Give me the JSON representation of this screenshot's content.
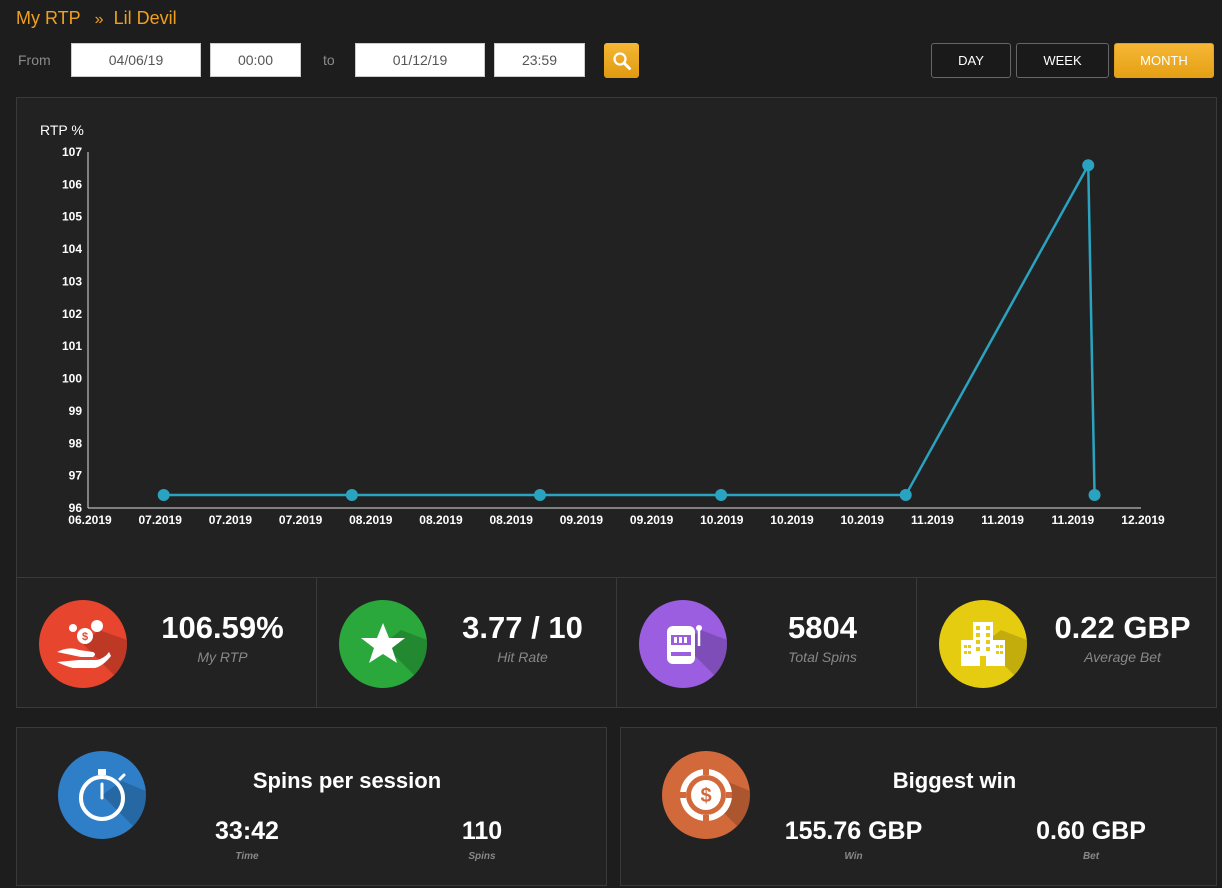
{
  "breadcrumb": {
    "parent": "My RTP",
    "separator": "»",
    "current": "Lil Devil"
  },
  "filter": {
    "from_label": "From",
    "from_date": "04/06/19",
    "from_time": "00:00",
    "to_label": "to",
    "to_date": "01/12/19",
    "to_time": "23:59"
  },
  "periods": {
    "day": "DAY",
    "week": "WEEK",
    "month": "MONTH",
    "active": "month"
  },
  "colors": {
    "accent": "#f0a01e",
    "line": "#2aa3c0"
  },
  "chart_data": {
    "type": "line",
    "ylabel": "RTP %",
    "xlabel": "",
    "ylim": [
      96,
      107
    ],
    "yticks": [
      96,
      97,
      98,
      99,
      100,
      101,
      102,
      103,
      104,
      105,
      106,
      107
    ],
    "xticks": [
      "06.2019",
      "07.2019",
      "07.2019",
      "07.2019",
      "08.2019",
      "08.2019",
      "08.2019",
      "09.2019",
      "09.2019",
      "10.2019",
      "10.2019",
      "10.2019",
      "11.2019",
      "11.2019",
      "11.2019",
      "12.2019"
    ],
    "series": [
      {
        "x": [
          "07.2019",
          "08.2019",
          "08.2019",
          "10.2019",
          "11.2019",
          "11.2019",
          "11.2019"
        ],
        "values": [
          96.4,
          96.4,
          96.4,
          96.4,
          96.4,
          106.59,
          96.4
        ]
      }
    ]
  },
  "stats": [
    {
      "icon": "money-hand-icon",
      "value": "106.59%",
      "caption": "My RTP",
      "color": "#e8452f"
    },
    {
      "icon": "star-icon",
      "value": "3.77 / 10",
      "caption": "Hit Rate",
      "color": "#2aa83c"
    },
    {
      "icon": "slot-machine-icon",
      "value": "5804",
      "caption": "Total Spins",
      "color": "#9b5ee0"
    },
    {
      "icon": "building-icon",
      "value": "0.22 GBP",
      "caption": "Average Bet",
      "color": "#e6cc10"
    }
  ],
  "session": {
    "title": "Spins per session",
    "time_value": "33:42",
    "time_label": "Time",
    "spins_value": "110",
    "spins_label": "Spins"
  },
  "biggest_win": {
    "title": "Biggest win",
    "win_value": "155.76 GBP",
    "win_label": "Win",
    "bet_value": "0.60 GBP",
    "bet_label": "Bet"
  }
}
